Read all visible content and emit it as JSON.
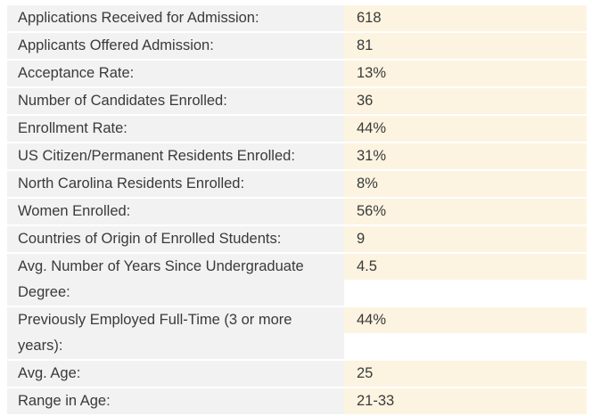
{
  "rows": [
    {
      "label": "Applications Received for Admission:",
      "value": "618"
    },
    {
      "label": "Applicants Offered Admission:",
      "value": "81"
    },
    {
      "label": "Acceptance Rate:",
      "value": "13%"
    },
    {
      "label": "Number of Candidates Enrolled:",
      "value": "36"
    },
    {
      "label": "Enrollment Rate:",
      "value": "44%"
    },
    {
      "label": "US Citizen/Permanent Residents Enrolled:",
      "value": "31%"
    },
    {
      "label": "North Carolina Residents Enrolled:",
      "value": "8%"
    },
    {
      "label": "Women Enrolled:",
      "value": "56%"
    },
    {
      "label": "Countries of Origin of Enrolled Students:",
      "value": "9"
    },
    {
      "label": "Avg. Number of Years Since Undergraduate Degree:",
      "value": "4.5"
    },
    {
      "label": "Previously Employed Full-Time (3 or more years):",
      "value": "44%"
    },
    {
      "label": "Avg. Age:",
      "value": "25"
    },
    {
      "label": "Range in Age:",
      "value": "21-33"
    }
  ]
}
